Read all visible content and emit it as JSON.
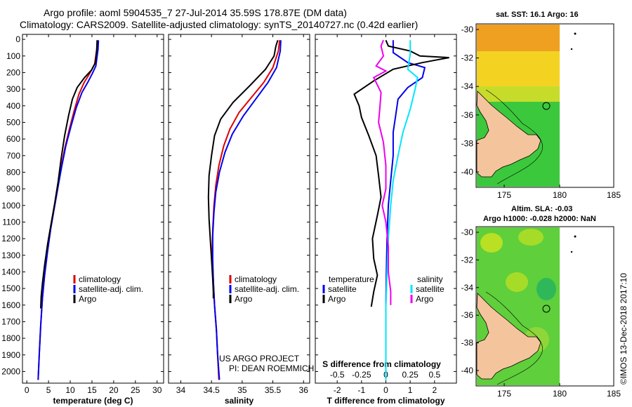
{
  "header": {
    "line1": "Argo profile: aoml 5904535_7 27-Jul-2014 35.59S 178.87E (DM data)",
    "line2": "Climatology: CARS2009. Satellite-adjusted climatology: synTS_20140727.nc (0.42d earlier)"
  },
  "depth_ticks": [
    "0",
    "100",
    "200",
    "300",
    "400",
    "500",
    "600",
    "700",
    "800",
    "900",
    "1000",
    "1100",
    "1200",
    "1300",
    "1400",
    "1500",
    "1600",
    "1700",
    "1800",
    "1900",
    "2000"
  ],
  "colors": {
    "argo": "#000000",
    "climatology": "#dd0000",
    "satellite": "#0000ee",
    "sat_salinity": "#00e5ff",
    "argo_salinity_diff": "#ee00ee",
    "land": "#f4c49c"
  },
  "chart_data": [
    {
      "type": "line",
      "panel": "temperature",
      "xlabel": "temperature (deg C)",
      "ylabel": "",
      "xlim": [
        -1,
        31.5
      ],
      "ylim": [
        2070,
        -30
      ],
      "xticks": [
        0,
        5,
        10,
        15,
        20,
        25,
        30
      ],
      "yticks": [
        0,
        100,
        200,
        300,
        400,
        500,
        600,
        700,
        800,
        900,
        1000,
        1100,
        1200,
        1300,
        1400,
        1500,
        1600,
        1700,
        1800,
        1900,
        2000
      ],
      "legend": {
        "position": "lower-right",
        "items": [
          "climatology",
          "satellite-adj. clim.",
          "Argo"
        ]
      },
      "series": [
        {
          "name": "climatology",
          "color": "#dd0000",
          "points": [
            [
              16.2,
              5
            ],
            [
              16.1,
              60
            ],
            [
              15.6,
              150
            ],
            [
              14.6,
              200
            ],
            [
              13.2,
              260
            ],
            [
              12.0,
              330
            ],
            [
              10.9,
              430
            ],
            [
              9.8,
              540
            ],
            [
              8.8,
              650
            ],
            [
              7.9,
              770
            ],
            [
              7.1,
              900
            ],
            [
              6.3,
              1020
            ],
            [
              5.5,
              1140
            ],
            [
              4.8,
              1270
            ],
            [
              4.1,
              1420
            ],
            [
              3.6,
              1560
            ],
            [
              3.2,
              1720
            ],
            [
              2.9,
              1880
            ],
            [
              2.6,
              2050
            ]
          ]
        },
        {
          "name": "satellite-adj. clim.",
          "color": "#0000ee",
          "points": [
            [
              16.5,
              5
            ],
            [
              16.4,
              60
            ],
            [
              15.9,
              160
            ],
            [
              15.1,
              205
            ],
            [
              14.0,
              260
            ],
            [
              12.7,
              320
            ],
            [
              11.4,
              410
            ],
            [
              10.2,
              520
            ],
            [
              9.0,
              640
            ],
            [
              8.0,
              770
            ],
            [
              7.1,
              900
            ],
            [
              6.3,
              1020
            ],
            [
              5.5,
              1140
            ],
            [
              4.8,
              1270
            ],
            [
              4.1,
              1420
            ],
            [
              3.6,
              1560
            ],
            [
              3.2,
              1720
            ],
            [
              2.9,
              1880
            ],
            [
              2.6,
              2050
            ]
          ]
        },
        {
          "name": "Argo",
          "color": "#000000",
          "points": [
            [
              16.2,
              5
            ],
            [
              16.1,
              60
            ],
            [
              15.8,
              140
            ],
            [
              14.9,
              185
            ],
            [
              13.3,
              230
            ],
            [
              11.6,
              290
            ],
            [
              10.5,
              360
            ],
            [
              9.6,
              460
            ],
            [
              8.7,
              580
            ],
            [
              7.9,
              720
            ],
            [
              7.2,
              860
            ],
            [
              6.4,
              990
            ],
            [
              5.6,
              1110
            ],
            [
              4.8,
              1230
            ],
            [
              4.1,
              1360
            ],
            [
              3.6,
              1470
            ],
            [
              3.3,
              1550
            ],
            [
              3.2,
              1620
            ]
          ]
        }
      ]
    },
    {
      "type": "line",
      "panel": "salinity",
      "xlabel": "salinity",
      "ylabel": "",
      "xlim": [
        33.8,
        36.1
      ],
      "ylim": [
        2070,
        -30
      ],
      "xticks": [
        34,
        34.5,
        35,
        35.5,
        36
      ],
      "yticks": [
        0,
        100,
        200,
        300,
        400,
        500,
        600,
        700,
        800,
        900,
        1000,
        1100,
        1200,
        1300,
        1400,
        1500,
        1600,
        1700,
        1800,
        1900,
        2000
      ],
      "legend": {
        "position": "lower-right",
        "items": [
          "climatology",
          "satellite-adj. clim.",
          "Argo"
        ]
      },
      "series": [
        {
          "name": "climatology",
          "color": "#dd0000",
          "points": [
            [
              35.61,
              5
            ],
            [
              35.59,
              70
            ],
            [
              35.5,
              170
            ],
            [
              35.35,
              260
            ],
            [
              35.15,
              350
            ],
            [
              34.95,
              440
            ],
            [
              34.8,
              540
            ],
            [
              34.7,
              640
            ],
            [
              34.62,
              760
            ],
            [
              34.57,
              880
            ],
            [
              34.54,
              1000
            ],
            [
              34.52,
              1150
            ],
            [
              34.51,
              1300
            ],
            [
              34.53,
              1450
            ],
            [
              34.55,
              1600
            ],
            [
              34.58,
              1750
            ],
            [
              34.6,
              1900
            ],
            [
              34.62,
              2050
            ]
          ]
        },
        {
          "name": "satellite-adj. clim.",
          "color": "#0000ee",
          "points": [
            [
              35.63,
              5
            ],
            [
              35.62,
              70
            ],
            [
              35.56,
              170
            ],
            [
              35.42,
              260
            ],
            [
              35.22,
              360
            ],
            [
              35.02,
              460
            ],
            [
              34.84,
              570
            ],
            [
              34.72,
              680
            ],
            [
              34.63,
              800
            ],
            [
              34.57,
              920
            ],
            [
              34.54,
              1040
            ],
            [
              34.52,
              1180
            ],
            [
              34.52,
              1320
            ],
            [
              34.53,
              1460
            ],
            [
              34.55,
              1600
            ],
            [
              34.58,
              1750
            ],
            [
              34.6,
              1900
            ],
            [
              34.63,
              2050
            ]
          ]
        },
        {
          "name": "Argo",
          "color": "#000000",
          "points": [
            [
              35.58,
              5
            ],
            [
              35.55,
              40
            ],
            [
              35.52,
              100
            ],
            [
              35.38,
              180
            ],
            [
              35.12,
              280
            ],
            [
              34.85,
              380
            ],
            [
              34.65,
              480
            ],
            [
              34.55,
              580
            ],
            [
              34.5,
              700
            ],
            [
              34.46,
              820
            ],
            [
              34.45,
              950
            ],
            [
              34.46,
              1080
            ],
            [
              34.48,
              1200
            ],
            [
              34.5,
              1320
            ],
            [
              34.52,
              1440
            ],
            [
              34.53,
              1520
            ],
            [
              34.53,
              1560
            ]
          ]
        }
      ]
    },
    {
      "type": "line",
      "panel": "difference",
      "xlabel": "T difference from climatology",
      "top_label": "S difference from climatology",
      "xlim": [
        -2.9,
        2.9
      ],
      "ylim": [
        2070,
        -30
      ],
      "xticks": [
        -2,
        -1,
        0,
        1,
        2
      ],
      "top_ticks": [
        "-0.5",
        "-0.25",
        "0",
        "0.25",
        "0.5"
      ],
      "top_ticks_t_equiv": [
        -2,
        -1,
        0,
        1,
        2
      ],
      "yticks": [
        0,
        100,
        200,
        300,
        400,
        500,
        600,
        700,
        800,
        900,
        1000,
        1100,
        1200,
        1300,
        1400,
        1500,
        1600,
        1700,
        1800,
        1900,
        2000
      ],
      "legend": {
        "position": "lower",
        "groups": [
          "temperature",
          "salinity"
        ]
      },
      "series": [
        {
          "name": "temperature satellite",
          "color": "#0000ee",
          "points": [
            [
              0.3,
              5
            ],
            [
              0.3,
              80
            ],
            [
              0.9,
              140
            ],
            [
              1.6,
              170
            ],
            [
              1.5,
              230
            ],
            [
              0.9,
              290
            ],
            [
              0.5,
              360
            ],
            [
              0.4,
              460
            ],
            [
              0.3,
              560
            ],
            [
              0.3,
              700
            ],
            [
              0.2,
              850
            ],
            [
              0.1,
              1000
            ],
            [
              0.05,
              1200
            ],
            [
              0.02,
              1400
            ],
            [
              0.0,
              1600
            ],
            [
              0.0,
              1800
            ],
            [
              0.0,
              2050
            ]
          ]
        },
        {
          "name": "temperature Argo",
          "color": "#000000",
          "points": [
            [
              0.0,
              5
            ],
            [
              0.1,
              40
            ],
            [
              1.0,
              70
            ],
            [
              1.4,
              100
            ],
            [
              2.6,
              110
            ],
            [
              1.5,
              140
            ],
            [
              0.3,
              180
            ],
            [
              -0.5,
              250
            ],
            [
              -1.3,
              330
            ],
            [
              -1.1,
              400
            ],
            [
              -1.0,
              470
            ],
            [
              -0.7,
              580
            ],
            [
              -0.4,
              700
            ],
            [
              -0.3,
              820
            ],
            [
              -0.2,
              950
            ],
            [
              -0.35,
              1060
            ],
            [
              -0.55,
              1200
            ],
            [
              -0.5,
              1320
            ],
            [
              -0.35,
              1420
            ],
            [
              -0.5,
              1520
            ],
            [
              -0.6,
              1610
            ]
          ]
        },
        {
          "name": "salinity satellite",
          "color": "#00e5ff",
          "points": [
            [
              1.0,
              5
            ],
            [
              1.0,
              90
            ],
            [
              0.9,
              180
            ],
            [
              1.3,
              230
            ],
            [
              1.2,
              300
            ],
            [
              1.0,
              420
            ],
            [
              0.7,
              560
            ],
            [
              0.5,
              700
            ],
            [
              0.3,
              850
            ],
            [
              0.2,
              1000
            ],
            [
              0.1,
              1200
            ],
            [
              0.05,
              1400
            ],
            [
              0.0,
              1600
            ],
            [
              0.0,
              1800
            ],
            [
              0.0,
              2050
            ]
          ]
        },
        {
          "name": "salinity Argo",
          "color": "#ee00ee",
          "points": [
            [
              -0.1,
              5
            ],
            [
              -0.2,
              40
            ],
            [
              -0.1,
              100
            ],
            [
              -0.4,
              160
            ],
            [
              0.0,
              190
            ],
            [
              -0.5,
              230
            ],
            [
              -0.2,
              320
            ],
            [
              -0.25,
              420
            ],
            [
              -0.3,
              500
            ],
            [
              -0.1,
              620
            ],
            [
              0.0,
              760
            ],
            [
              0.0,
              900
            ],
            [
              -0.15,
              1000
            ],
            [
              0.0,
              1100
            ],
            [
              0.1,
              1250
            ],
            [
              0.1,
              1400
            ],
            [
              0.2,
              1520
            ],
            [
              0.2,
              1600
            ]
          ]
        }
      ]
    }
  ],
  "legend_labels": {
    "climatology": "climatology",
    "satellite_adj": "satellite-adj. clim.",
    "argo": "Argo",
    "temperature": "temperature",
    "salinity": "salinity",
    "satellite": "satellite"
  },
  "project_credit": {
    "line1": "US ARGO PROJECT",
    "line2": "PI: DEAN ROEMMICH"
  },
  "maps": {
    "sst": {
      "label": "sat. SST: 16.1  Argo: 16",
      "lat_ticks": [
        "-30",
        "-32",
        "-34",
        "-36",
        "-38",
        "-40"
      ],
      "lon_ticks": [
        "175",
        "180",
        "185"
      ],
      "profile_location": {
        "lat": -35.59,
        "lon": 178.87
      }
    },
    "sla": {
      "label1": "Altim. SLA: -0.03",
      "label2": "Argo h1000: -0.028  h2000: NaN",
      "lat_ticks": [
        "-30",
        "-32",
        "-34",
        "-36",
        "-38",
        "-40"
      ],
      "lon_ticks": [
        "175",
        "180",
        "185"
      ],
      "profile_location": {
        "lat": -35.59,
        "lon": 178.87
      }
    }
  },
  "watermark": "©IMOS 13-Dec-2018 2017:10"
}
